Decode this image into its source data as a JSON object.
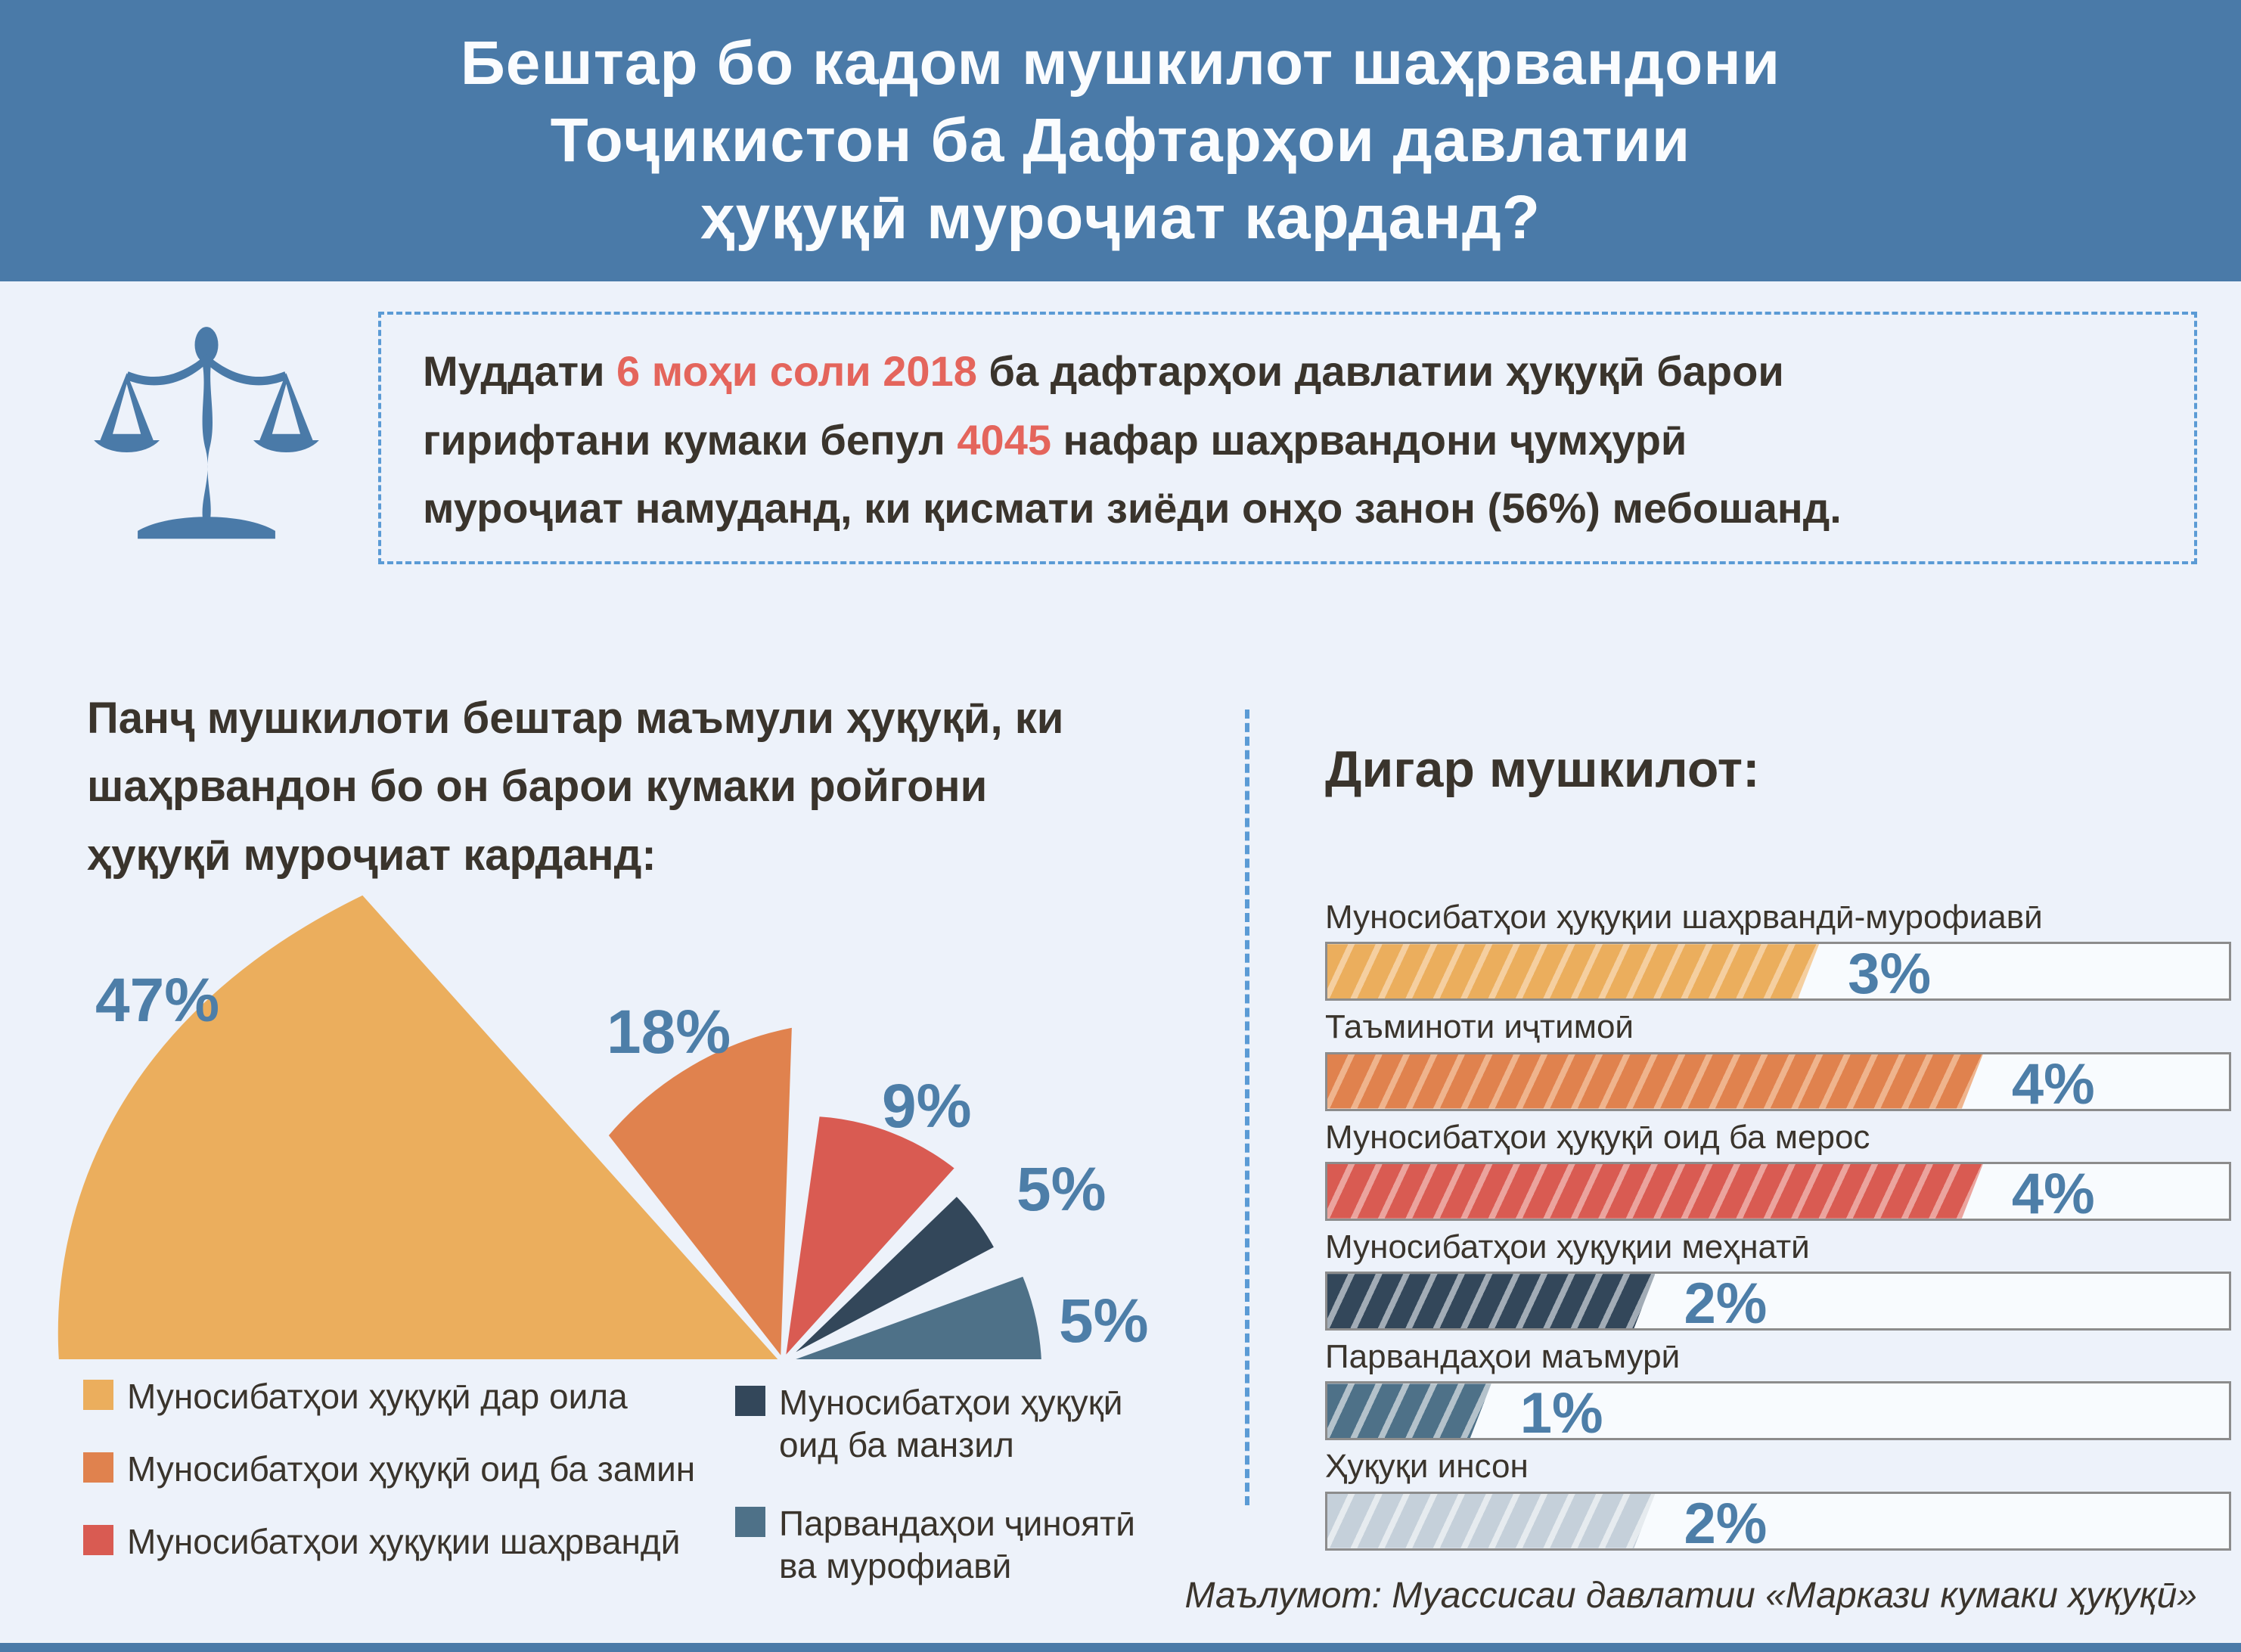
{
  "palette": {
    "band_blue": "#4A7AA8",
    "background": "#EDF2FA",
    "percent_blue": "#4D7EA8",
    "text_dark": "#3A342C",
    "red_accent": "#E4655C",
    "dashed_blue": "#5B9BD5"
  },
  "header": {
    "title_lines": [
      "Бештар бо кадом мушкилот шаҳрвандони",
      "Тоҷикистон ба Дафтарҳои давлатии",
      "ҳуқуқӣ муроҷиат карданд?"
    ]
  },
  "intro": {
    "icon": "scales-of-justice-icon",
    "lines": [
      [
        {
          "t": "Муддати ",
          "h": false
        },
        {
          "t": "6 моҳи соли 2018",
          "h": true
        },
        {
          "t": " ба дафтарҳои давлатии ҳуқуқӣ барои",
          "h": false
        }
      ],
      [
        {
          "t": "гирифтани кумаки бепул ",
          "h": false
        },
        {
          "t": "4045",
          "h": true
        },
        {
          "t": " нафар шаҳрвандони ҷумҳурӣ",
          "h": false
        }
      ],
      [
        {
          "t": "муроҷиат намуданд, ки қисмати зиёди онҳо занон (56%) мебошанд.",
          "h": false
        }
      ]
    ]
  },
  "left_section": {
    "title_lines": [
      "Панҷ мушкилоти бештар маъмули ҳуқуқӣ, ки",
      "шаҳрвандон бо он барои кумаки ройгони",
      "ҳуқуқӣ муроҷиат карданд:"
    ]
  },
  "right_section": {
    "heading": "Дигар мушкилот:",
    "source": "Маълумот: Муассисаи давлатии «Маркази кумаки ҳуқуқӣ»"
  },
  "chart_data": [
    {
      "type": "pie",
      "style": "fan",
      "title": "Панҷ мушкилоти бештар маъмули ҳуқуқӣ, ки шаҳрвандон бо он барои кумаки ройгони ҳуқуқӣ муроҷиат карданд:",
      "unit": "%",
      "items": [
        {
          "label": "Муносибатҳои ҳуқуқӣ дар оила",
          "legend_lines": [
            "Муносибатҳои ҳуқуқӣ дар оила"
          ],
          "value": 47,
          "color": "#EBAE5D"
        },
        {
          "label": "Муносибатҳои ҳуқуқӣ оид ба замин",
          "legend_lines": [
            "Муносибатҳои ҳуқуқӣ оид ба замин"
          ],
          "value": 18,
          "color": "#E0824E"
        },
        {
          "label": "Муносибатҳои ҳуқуқии шаҳрвандӣ",
          "legend_lines": [
            "Муносибатҳои ҳуқуқии шаҳрвандӣ"
          ],
          "value": 9,
          "color": "#D95B52"
        },
        {
          "label": "Муносибатҳои ҳуқуқӣ оид ба манзил",
          "legend_lines": [
            "Муносибатҳои ҳуқуқӣ",
            "оид ба манзил"
          ],
          "value": 5,
          "color": "#33475A"
        },
        {
          "label": "Парвандаҳои ҷиноятӣ ва мурофиавӣ",
          "legend_lines": [
            "Парвандаҳои ҷиноятӣ",
            "ва мурофиавӣ"
          ],
          "value": 5,
          "color": "#4E7188"
        }
      ]
    },
    {
      "type": "bar",
      "orientation": "horizontal",
      "title": "Дигар мушкилот:",
      "unit": "%",
      "xlim": [
        0,
        5.5
      ],
      "items": [
        {
          "label": "Муносибатҳои ҳуқуқии шаҳрвандӣ-мурофиавӣ",
          "value": 3,
          "color": "#EBAE5D",
          "stripe": "#F5CFA0"
        },
        {
          "label": "Таъминоти иҷтимоӣ",
          "value": 4,
          "color": "#E0824E",
          "stripe": "#EFB48D"
        },
        {
          "label": "Муносибатҳои ҳуқуқӣ оид ба мерос",
          "value": 4,
          "color": "#D95B52",
          "stripe": "#EBA49E"
        },
        {
          "label": "Муносибатҳои ҳуқуқии меҳнатӣ",
          "value": 2,
          "color": "#33475A",
          "stripe": "#A2ACB6"
        },
        {
          "label": "Парвандаҳои маъмурӣ",
          "value": 1,
          "color": "#4E7188",
          "stripe": "#B4C2CB"
        },
        {
          "label": "Ҳуқуқи инсон",
          "value": 2,
          "color": "#C5D0DA",
          "stripe": "#E6EBEF"
        }
      ]
    }
  ]
}
